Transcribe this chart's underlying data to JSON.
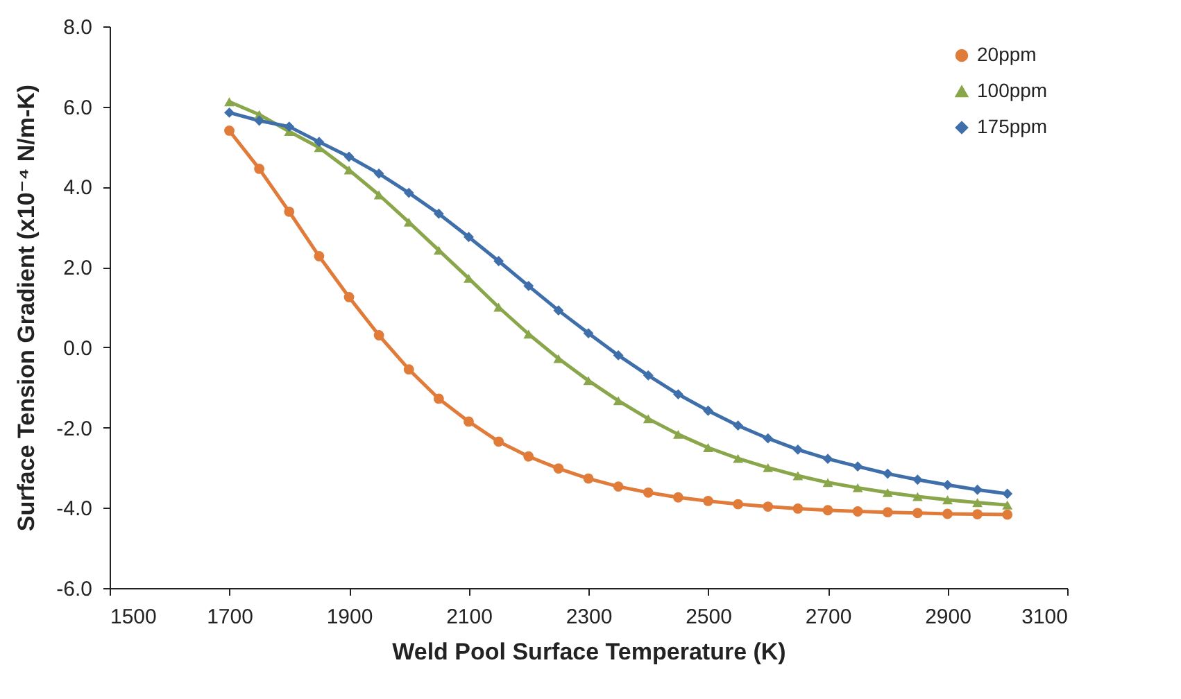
{
  "chart_data": {
    "type": "line",
    "xlabel": "Weld Pool Surface Temperature (K)",
    "ylabel": "Surface Tension Gradient (x10⁻⁴ N/m-K)",
    "x": [
      1700,
      1750,
      1800,
      1850,
      1900,
      1950,
      2000,
      2050,
      2100,
      2150,
      2200,
      2250,
      2300,
      2350,
      2400,
      2450,
      2500,
      2550,
      2600,
      2650,
      2700,
      2750,
      2800,
      2850,
      2900,
      2950,
      3000
    ],
    "series": [
      {
        "name": "20ppm",
        "color": "#e07b39",
        "marker": "circle",
        "values": [
          5.4,
          4.45,
          3.38,
          2.27,
          1.25,
          0.3,
          -0.55,
          -1.28,
          -1.85,
          -2.35,
          -2.72,
          -3.02,
          -3.27,
          -3.47,
          -3.62,
          -3.74,
          -3.83,
          -3.91,
          -3.97,
          -4.02,
          -4.06,
          -4.09,
          -4.11,
          -4.13,
          -4.15,
          -4.16,
          -4.17
        ]
      },
      {
        "name": "100ppm",
        "color": "#8aa64a",
        "marker": "triangle",
        "values": [
          6.12,
          5.8,
          5.38,
          4.98,
          4.42,
          3.8,
          3.12,
          2.42,
          1.72,
          1.0,
          0.33,
          -0.28,
          -0.83,
          -1.33,
          -1.78,
          -2.17,
          -2.5,
          -2.77,
          -3.0,
          -3.2,
          -3.37,
          -3.5,
          -3.62,
          -3.72,
          -3.8,
          -3.87,
          -3.93
        ]
      },
      {
        "name": "175ppm",
        "color": "#3f6faa",
        "marker": "diamond",
        "values": [
          5.85,
          5.65,
          5.5,
          5.12,
          4.75,
          4.33,
          3.85,
          3.33,
          2.75,
          2.15,
          1.53,
          0.92,
          0.35,
          -0.2,
          -0.7,
          -1.17,
          -1.58,
          -1.95,
          -2.27,
          -2.55,
          -2.78,
          -2.97,
          -3.15,
          -3.3,
          -3.43,
          -3.55,
          -3.65
        ]
      }
    ],
    "xlim": [
      1500,
      3100
    ],
    "xticks": [
      1500,
      1700,
      1900,
      2100,
      2300,
      2500,
      2700,
      2900,
      3100
    ],
    "ylim": [
      -6,
      8
    ],
    "yticks": [
      {
        "value": -6,
        "label": "-6.0"
      },
      {
        "value": -4,
        "label": "-4.0"
      },
      {
        "value": -2,
        "label": "-2.0"
      },
      {
        "value": 0,
        "label": "0.0"
      },
      {
        "value": 2,
        "label": "2.0"
      },
      {
        "value": 4,
        "label": "4.0"
      },
      {
        "value": 6,
        "label": "6.0"
      },
      {
        "value": 8,
        "label": "8.0"
      }
    ],
    "legend": "top right"
  }
}
